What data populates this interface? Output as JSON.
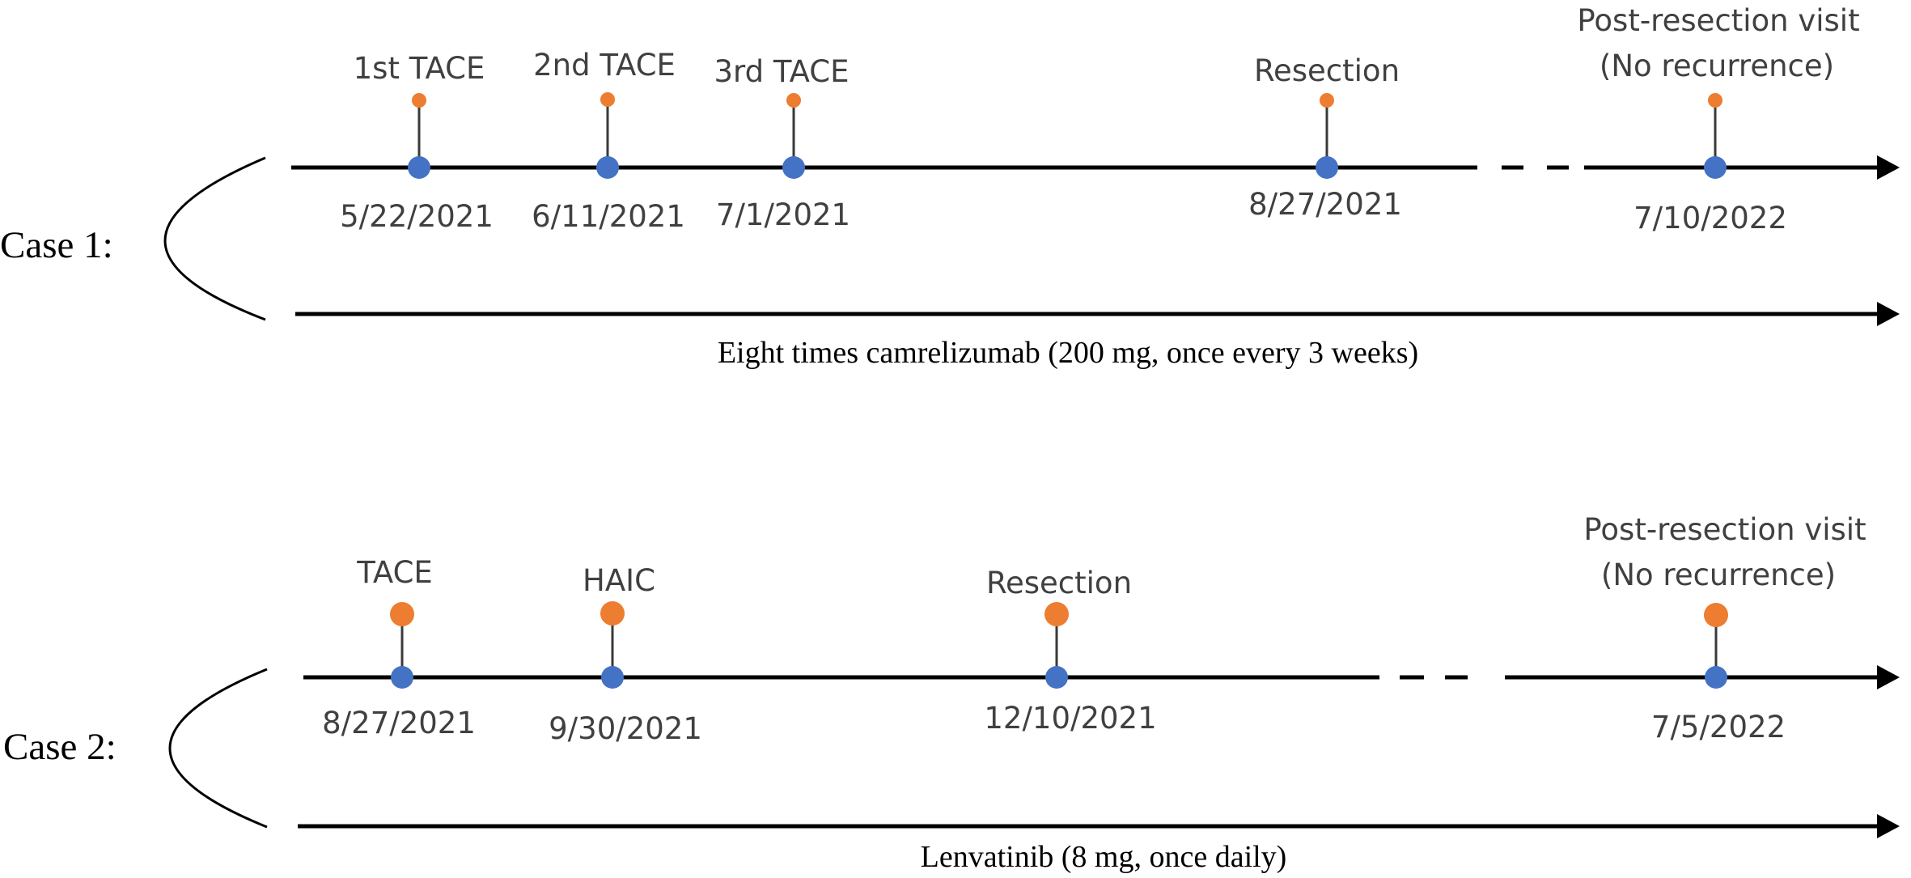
{
  "colors": {
    "line": "#000000",
    "stem": "#3a3a3a",
    "event_dot": "#ED7D31",
    "date_dot": "#4472C4",
    "event_text": "#404040"
  },
  "cases": [
    {
      "label": "Case 1:",
      "drug": "Eight times camrelizumab (200 mg, once every 3 weeks)",
      "events": [
        {
          "name": "1st TACE",
          "date": "5/22/2021"
        },
        {
          "name": "2nd TACE",
          "date": "6/11/2021"
        },
        {
          "name": "3rd TACE",
          "date": "7/1/2021"
        },
        {
          "name": "Resection",
          "date": "8/27/2021"
        },
        {
          "name": "Post-resection visit",
          "name2": "(No recurrence)",
          "date": "7/10/2022"
        }
      ]
    },
    {
      "label": "Case 2:",
      "drug": "Lenvatinib (8 mg, once daily)",
      "events": [
        {
          "name": "TACE",
          "date": "8/27/2021"
        },
        {
          "name": "HAIC",
          "date": "9/30/2021"
        },
        {
          "name": "Resection",
          "date": "12/10/2021"
        },
        {
          "name": "Post-resection visit",
          "name2": "(No recurrence)",
          "date": "7/5/2022"
        }
      ]
    }
  ]
}
